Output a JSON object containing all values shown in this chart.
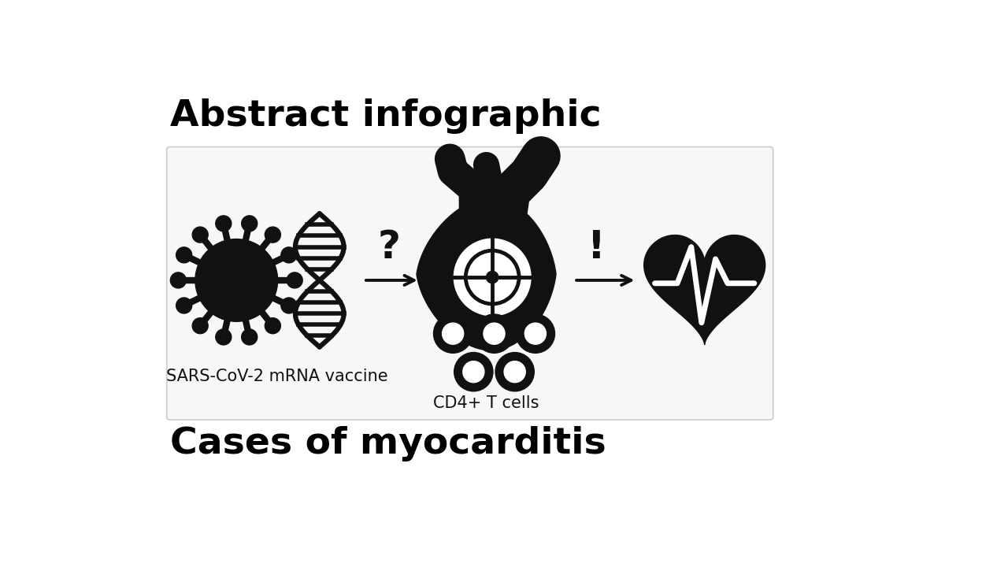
{
  "title1": "Abstract infographic",
  "title2": "Cases of myocarditis",
  "label1": "SARS-CoV-2 mRNA vaccine",
  "label2": "CD4+ T cells",
  "bg_color": "#ffffff",
  "box_facecolor": "#f7f7f7",
  "box_edgecolor": "#cccccc",
  "text_color": "#000000",
  "icon_color": "#111111",
  "title_fontsize": 34,
  "label_fontsize": 15,
  "q_fontsize": 36,
  "excl_fontsize": 36
}
